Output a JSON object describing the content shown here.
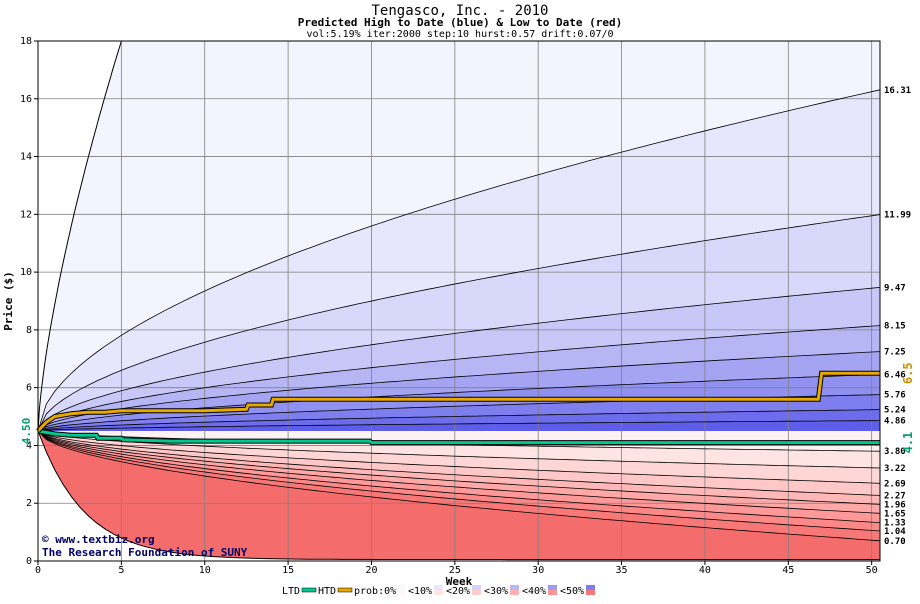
{
  "chart_data": {
    "type": "area",
    "title": "Tengasco, Inc. - 2010",
    "subtitle": "Predicted High to Date (blue) &  Low to Date (red)",
    "params": "vol:5.19% iter:2000 step:10 hurst:0.57 drift:0.07/0",
    "xlabel": "Week",
    "ylabel": "Price ($)",
    "xlim": [
      0,
      50.5
    ],
    "ylim": [
      0,
      18
    ],
    "x_ticks": [
      0,
      5,
      10,
      15,
      20,
      25,
      30,
      35,
      40,
      45,
      50
    ],
    "y_ticks": [
      0,
      2,
      4,
      6,
      8,
      10,
      12,
      14,
      16,
      18
    ],
    "grid": true,
    "start_price": 4.5,
    "start_label": "4.50",
    "high_curves": [
      {
        "end": 16.31,
        "label": "16.31"
      },
      {
        "end": 11.99,
        "label": "11.99"
      },
      {
        "end": 9.47,
        "label": "9.47"
      },
      {
        "end": 8.15,
        "label": "8.15"
      },
      {
        "end": 7.25,
        "label": "7.25"
      },
      {
        "end": 6.46,
        "label": "6.46"
      },
      {
        "end": 5.76,
        "label": "5.76"
      },
      {
        "end": 5.24,
        "label": "5.24"
      },
      {
        "end": 4.86,
        "label": "4.86"
      }
    ],
    "low_curves": [
      {
        "end": 3.8,
        "label": "3.80"
      },
      {
        "end": 3.22,
        "label": "3.22"
      },
      {
        "end": 2.69,
        "label": "2.69"
      },
      {
        "end": 2.27,
        "label": "2.27"
      },
      {
        "end": 1.96,
        "label": "1.96"
      },
      {
        "end": 1.65,
        "label": "1.65"
      },
      {
        "end": 1.33,
        "label": "1.33"
      },
      {
        "end": 1.04,
        "label": "1.04"
      },
      {
        "end": 0.7,
        "label": "0.70"
      }
    ],
    "actual_high": {
      "name": "HTD",
      "color": "#e8a800",
      "x": [
        0,
        0.5,
        1,
        2,
        3,
        4,
        5,
        8,
        10,
        12.5,
        12.6,
        14,
        14.1,
        20,
        28,
        35,
        42,
        46.8,
        47,
        50.5
      ],
      "y": [
        4.5,
        4.8,
        5.0,
        5.1,
        5.15,
        5.15,
        5.2,
        5.2,
        5.2,
        5.25,
        5.4,
        5.4,
        5.6,
        5.6,
        5.6,
        5.6,
        5.6,
        5.6,
        6.5,
        6.5
      ],
      "end_label": "6.5"
    },
    "actual_low": {
      "name": "LTD",
      "color": "#00c890",
      "x": [
        0,
        1,
        2,
        3.5,
        3.6,
        5,
        5.1,
        8,
        15,
        19.9,
        20,
        30,
        40,
        50.5
      ],
      "y": [
        4.5,
        4.4,
        4.35,
        4.35,
        4.25,
        4.25,
        4.2,
        4.15,
        4.15,
        4.15,
        4.1,
        4.1,
        4.1,
        4.1
      ],
      "end_label": "4.1"
    },
    "legend": {
      "ltd": "LTD",
      "htd": "HTD",
      "prob_labels": [
        "prob:0%",
        "<10%",
        "<20%",
        "<30%",
        "<40%",
        "<50%"
      ],
      "blue_colors": [
        "#f6f6ff",
        "#e6e6fc",
        "#d2d2fa",
        "#b8b8f6",
        "#9c9cf2",
        "#7e7eee"
      ],
      "red_colors": [
        "#fff6f6",
        "#ffe4e4",
        "#ffcccc",
        "#ffb0b0",
        "#ff9494",
        "#f87878"
      ],
      "position": "bottom"
    },
    "watermark": [
      "© www.textbiz.org",
      "The Research Foundation of SUNY"
    ]
  }
}
